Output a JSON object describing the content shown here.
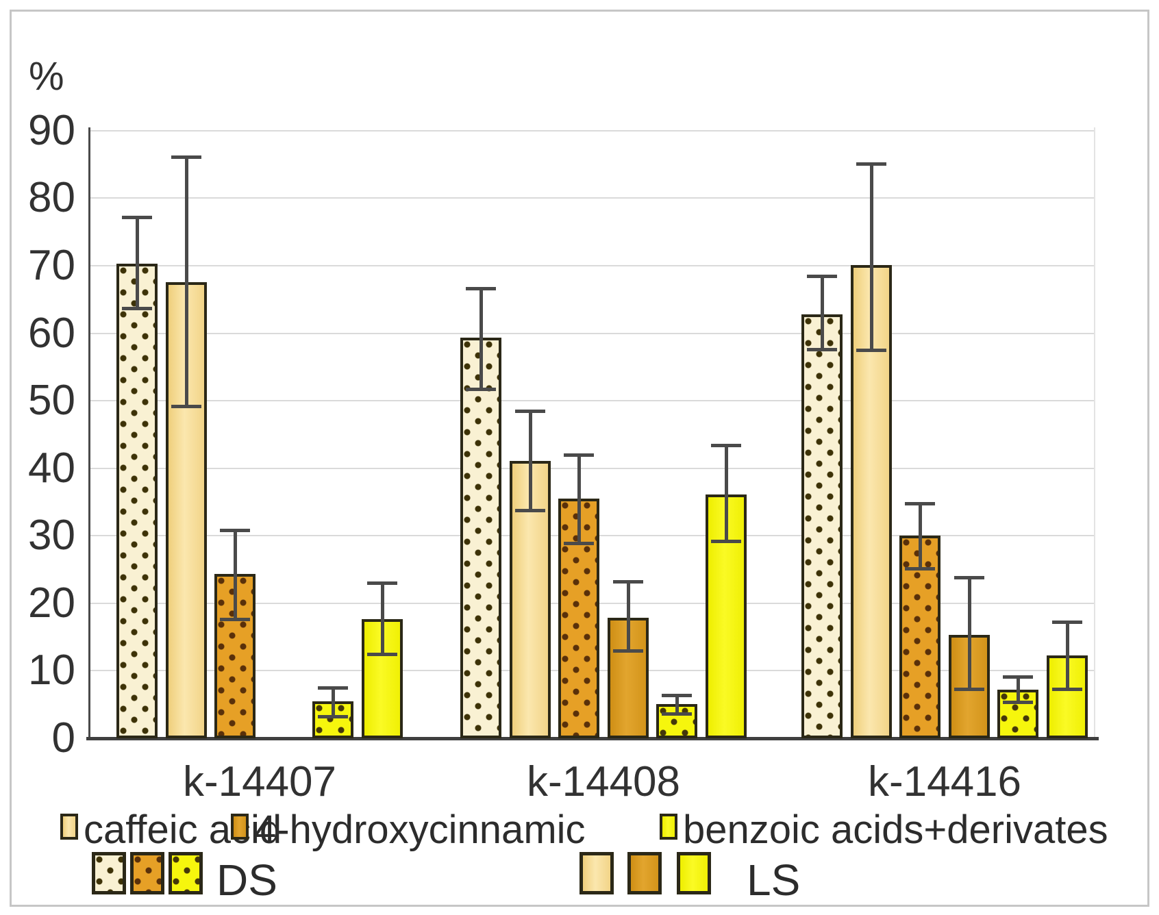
{
  "chart_data": {
    "type": "bar",
    "title": "",
    "ylabel": "%",
    "ylim": [
      0,
      90
    ],
    "yticks": [
      0,
      10,
      20,
      30,
      40,
      50,
      60,
      70,
      80,
      90
    ],
    "grid": true,
    "legend_position": "bottom",
    "categories": [
      "k-14407",
      "k-14408",
      "k-14416"
    ],
    "series": [
      {
        "name": "caffeic acid DS",
        "compound": "caffeic",
        "pattern": "DS",
        "values": [
          70.3,
          59.3,
          62.8
        ],
        "whisker_bottom": [
          63.5,
          51.5,
          57.4
        ],
        "whisker_top": [
          77.4,
          66.9,
          68.7
        ]
      },
      {
        "name": "caffeic acid LS",
        "compound": "caffeic",
        "pattern": "LS",
        "values": [
          67.6,
          41.1,
          70.1
        ],
        "whisker_bottom": [
          49.0,
          33.6,
          57.3
        ],
        "whisker_top": [
          86.3,
          48.7,
          85.3
        ]
      },
      {
        "name": "4-hydroxycinnamic DS",
        "compound": "hydroxycinnamic",
        "pattern": "DS",
        "values": [
          24.3,
          35.5,
          30.0
        ],
        "whisker_bottom": [
          17.4,
          28.7,
          25.0
        ],
        "whisker_top": [
          31.0,
          42.2,
          35.0
        ]
      },
      {
        "name": "4-hydroxycinnamic LS",
        "compound": "hydroxycinnamic",
        "pattern": "LS",
        "values": [
          0,
          17.9,
          15.3
        ],
        "whisker_bottom": [
          null,
          12.8,
          7.1
        ],
        "whisker_top": [
          null,
          23.4,
          24.0
        ]
      },
      {
        "name": "benzoic acids+derivates DS",
        "compound": "benzoic",
        "pattern": "DS",
        "values": [
          5.5,
          5.1,
          7.2
        ],
        "whisker_bottom": [
          3.0,
          3.5,
          5.2
        ],
        "whisker_top": [
          7.7,
          6.6,
          9.3
        ]
      },
      {
        "name": "benzoic acids+derivates LS",
        "compound": "benzoic",
        "pattern": "LS",
        "values": [
          17.7,
          36.1,
          12.3
        ],
        "whisker_bottom": [
          12.3,
          29.0,
          7.1
        ],
        "whisker_top": [
          23.2,
          43.6,
          17.4
        ]
      }
    ],
    "legend_compounds": [
      {
        "label": "caffeic acid",
        "compound": "caffeic"
      },
      {
        "label": "4-hydroxycinnamic",
        "compound": "hydroxycinnamic"
      },
      {
        "label": "benzoic acids+derivates",
        "compound": "benzoic"
      }
    ],
    "legend_patterns": [
      {
        "label": "DS",
        "pattern": "DS"
      },
      {
        "label": "LS",
        "pattern": "LS"
      }
    ]
  },
  "colors": {
    "caffeic_ds_bg": "#f9f1d3",
    "caffeic_ls": "#f3d98f",
    "hydroxycinnamic_ds_bg": "#e6a026",
    "hydroxycinnamic_ls": "#d8971c",
    "benzoic_ds_bg": "#f6f60d",
    "benzoic_ls": "#f4f410",
    "dot_dark": "#3d3207",
    "bar_border": "#2b2817",
    "whisker": "#4a4a4a",
    "gridline": "#dadada",
    "axis": "#3f3f3f",
    "text": "#323232",
    "frame": "#c6c6c6"
  }
}
